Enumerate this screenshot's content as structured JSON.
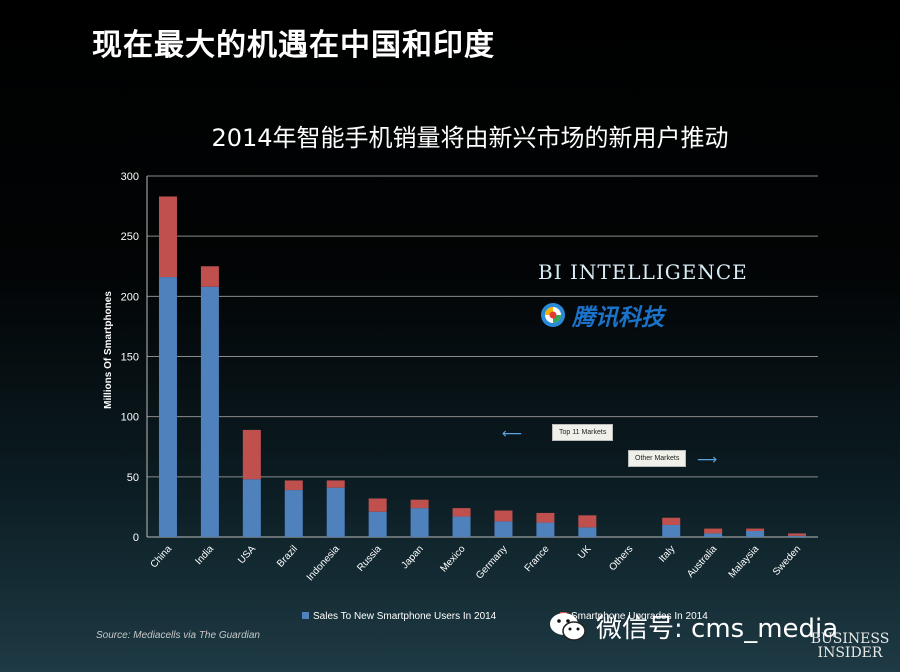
{
  "slide": {
    "heading": "现在最大的机遇在中国和印度"
  },
  "chart_data": {
    "type": "bar",
    "stacked": true,
    "title": "2014年智能手机销量将由新兴市场的新用户推动",
    "ylabel": "Millions Of Smartphones",
    "xlabel": "",
    "ylim": [
      0,
      300
    ],
    "yticks": [
      0,
      50,
      100,
      150,
      200,
      250,
      300
    ],
    "grid": true,
    "categories": [
      "China",
      "India",
      "USA",
      "Brazil",
      "Indonesia",
      "Russia",
      "Japan",
      "Mexico",
      "Germany",
      "France",
      "UK",
      "Others",
      "Italy",
      "Australia",
      "Malaysia",
      "Sweden"
    ],
    "series": [
      {
        "name": "Sales To New Smartphone Users In 2014",
        "color": "#4f81bd",
        "values": [
          216,
          208,
          48,
          39,
          41,
          21,
          24,
          17,
          13,
          12,
          8,
          0,
          10,
          3,
          5,
          1
        ]
      },
      {
        "name": "Smartphone Upgrades In 2014",
        "color": "#c0504d",
        "values": [
          67,
          17,
          41,
          8,
          6,
          11,
          7,
          7,
          9,
          8,
          10,
          0,
          6,
          4,
          2,
          2
        ]
      }
    ],
    "legend": {
      "position": "bottom",
      "label_1": "Sales To New Smartphone Users In 2014",
      "label_2": "Smartphone Upgrades In 2014"
    },
    "annotations": {
      "top_markets": "Top 11 Markets",
      "other_markets": "Other Markets"
    }
  },
  "branding": {
    "bi_intelligence": "BI INTELLIGENCE",
    "tencent_tech": "腾讯科技",
    "source": "Source: Mediacells via The Guardian",
    "watermark": "微信号: cms_media",
    "business_insider_1": "BUSINESS",
    "business_insider_2": "INSIDER"
  },
  "colors": {
    "new_users": "#4f81bd",
    "upgrades": "#c0504d",
    "background": "#000000",
    "grid": "#8a8a8a"
  }
}
